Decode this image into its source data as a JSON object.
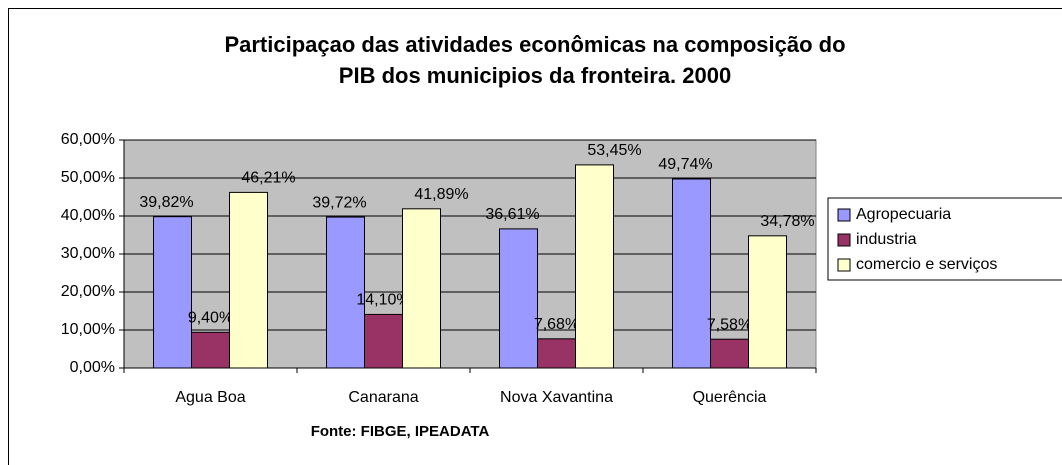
{
  "chart_data": {
    "type": "bar",
    "title": [
      "Participaçao das atividades econômicas  na composição do",
      "PIB dos municipios da fronteira. 2000"
    ],
    "x_label": "Fonte: FIBGE, IPEADATA",
    "categories": [
      "Agua Boa",
      "Canarana",
      "Nova Xavantina",
      "Querência"
    ],
    "series": [
      {
        "name": "Agropecuaria",
        "color": "#9999ff",
        "values": [
          39.82,
          39.72,
          36.61,
          49.74
        ],
        "value_labels": [
          "39,82%",
          "39,72%",
          "36,61%",
          "49,74%"
        ]
      },
      {
        "name": "industria",
        "color": "#993366",
        "values": [
          9.4,
          14.1,
          7.68,
          7.58
        ],
        "value_labels": [
          "9,40%",
          "14,10%",
          "7,68%",
          "7,58%"
        ]
      },
      {
        "name": "comercio e serviços",
        "color": "#ffffcc",
        "values": [
          46.21,
          41.89,
          53.45,
          34.78
        ],
        "value_labels": [
          "46,21%",
          "41,89%",
          "53,45%",
          "34,78%"
        ]
      }
    ],
    "ylim": [
      0,
      60
    ],
    "yticks": [
      {
        "value": 0,
        "label": "0,00%"
      },
      {
        "value": 10,
        "label": "10,00%"
      },
      {
        "value": 20,
        "label": "20,00%"
      },
      {
        "value": 30,
        "label": "30,00%"
      },
      {
        "value": 40,
        "label": "40,00%"
      },
      {
        "value": 50,
        "label": "50,00%"
      },
      {
        "value": 60,
        "label": "60,00%"
      }
    ],
    "grid": true,
    "legend": "right",
    "plot_background": "#c0c0c0"
  }
}
